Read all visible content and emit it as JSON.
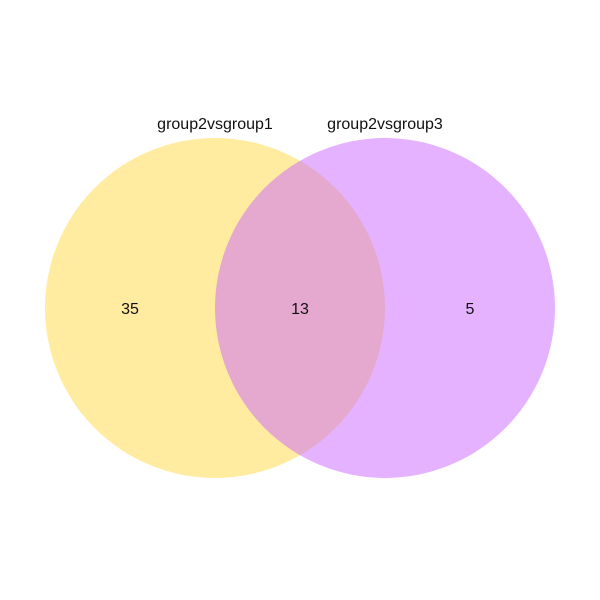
{
  "diagram": {
    "type": "venn",
    "sets": [
      {
        "name": "group2vsgroup1",
        "color": "#FFE680"
      },
      {
        "name": "group2vsgroup3",
        "color": "#CC66FF"
      }
    ],
    "regions": {
      "only_first": "35",
      "intersection": "13",
      "only_second": "5"
    }
  }
}
